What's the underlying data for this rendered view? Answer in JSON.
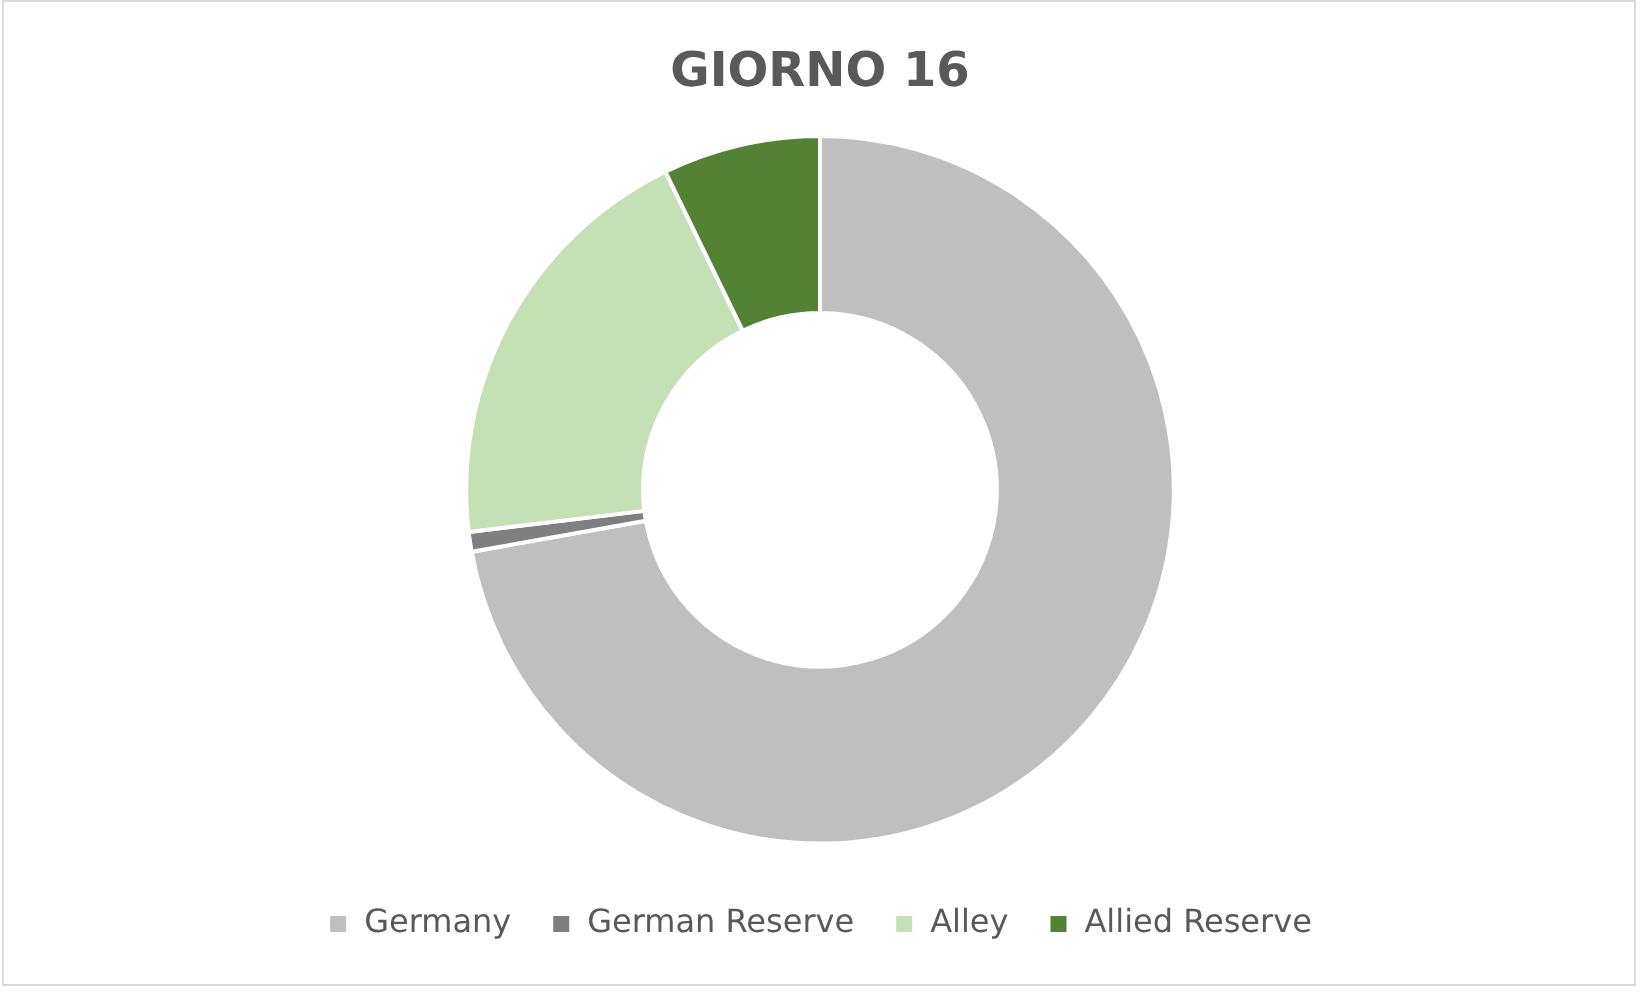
{
  "chart_data": {
    "type": "donut",
    "title": "GIORNO 16",
    "categories": [
      "Germany",
      "German Reserve",
      "Alley",
      "Allied Reserve"
    ],
    "values": [
      72.2,
      0.9,
      19.7,
      7.2
    ],
    "colors": [
      "#bfbfbf",
      "#7f7f7f",
      "#c5e0b4",
      "#548235"
    ],
    "legend": "bottom"
  }
}
